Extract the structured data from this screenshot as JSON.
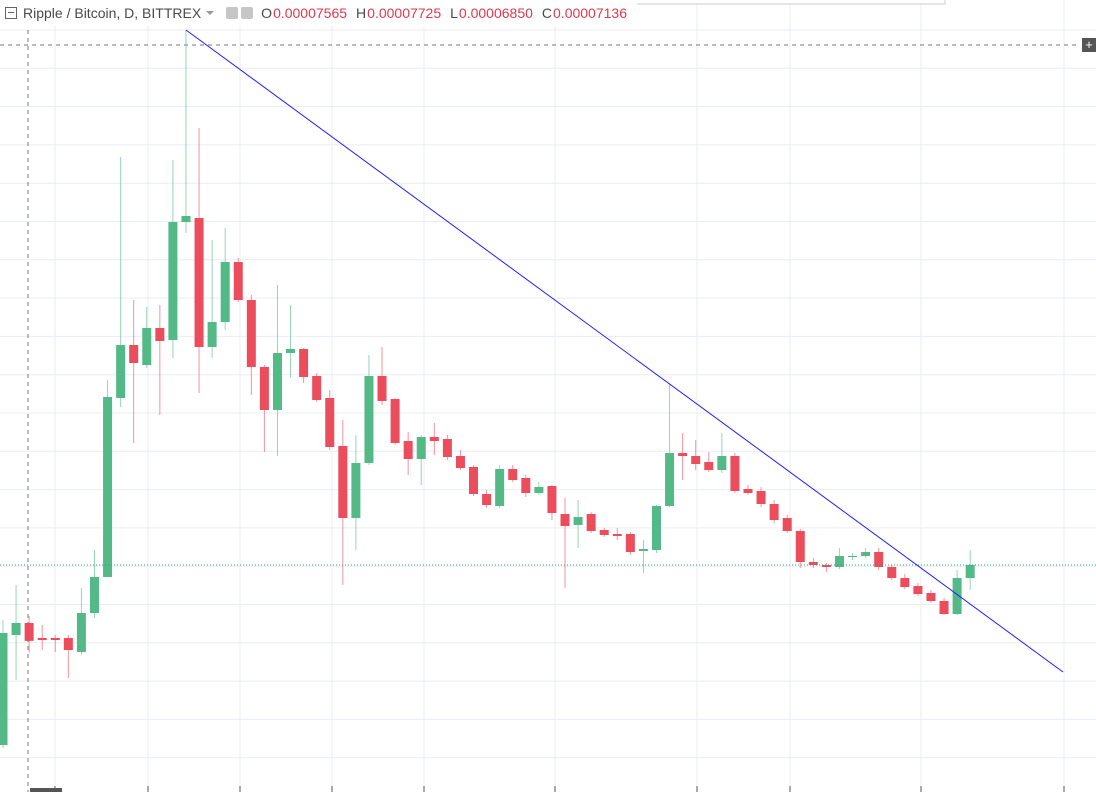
{
  "chart_data": {
    "type": "candlestick",
    "title": "Ripple / Bitcoin, D, BITTREX",
    "ohlc_legend": [
      {
        "label": "O",
        "value": "0.00007565"
      },
      {
        "label": "H",
        "value": "0.00007725"
      },
      {
        "label": "L",
        "value": "0.00006850"
      },
      {
        "label": "C",
        "value": "0.00007136"
      }
    ],
    "up_color": "#53b987",
    "down_color": "#eb4d5c",
    "ylim": [
      3.557e-05,
      0.00022517
    ],
    "open": [
      4.637e-05,
      7.277e-05,
      7.565e-05,
      7.205e-05,
      7.205e-05,
      7.205e-05,
      6.869e-05,
      7.805e-05,
      8.669e-05,
      0.00012965,
      0.00014237,
      0.00013757,
      0.00014645,
      0.00014357,
      0.00017189,
      0.00017285,
      0.00014189,
      0.00014789,
      0.00016229,
      0.00015317,
      0.00013709,
      0.00012677,
      0.00014045,
      0.00014141,
      0.00013493,
      0.00012965,
      0.00011813,
      0.00010085,
      0.00011405,
      0.00013493,
      0.00012941,
      0.00011933,
      0.00011501,
      0.00012029,
      0.00011981,
      0.00011573,
      0.00011309,
      0.00010661,
      0.00010373,
      0.00011261,
      0.00011045,
      0.00010685,
      0.00010853,
      0.00010181,
      9.917e-05,
      0.00010181,
      9.797e-05,
      9.701e-05,
      9.701e-05,
      9.293e-05,
      9.317e-05,
      0.00010373,
      0.00011645,
      0.00011573,
      0.00011429,
      0.00011237,
      0.00011573,
      0.00010781,
      0.00010733,
      0.00010421,
      0.00010085,
      9.773e-05,
      9.029e-05,
      8.957e-05,
      8.909e-05,
      9.149e-05,
      9.173e-05,
      9.269e-05,
      8.909e-05,
      8.645e-05,
      8.453e-05,
      8.285e-05,
      8.093e-05,
      7.781e-05,
      8.645e-05
    ],
    "high": [
      7.637e-05,
      8.477e-05,
      7.725e-05,
      7.517e-05,
      7.277e-05,
      7.277e-05,
      8.405e-05,
      9.317e-05,
      0.00013397,
      0.00018749,
      0.00015317,
      0.00015149,
      0.00015197,
      0.00018677,
      0.00021797,
      0.00019445,
      0.00016757,
      0.00017045,
      0.00016325,
      0.00015437,
      0.00013757,
      0.00015677,
      0.00015197,
      0.00014165,
      0.00013565,
      0.00013157,
      0.00012437,
      0.00012077,
      0.00013997,
      0.00014189,
      0.00012965,
      0.00012149,
      0.00012077,
      0.00012365,
      0.00012077,
      0.00011717,
      0.00011357,
      0.00010757,
      0.00011357,
      0.00011357,
      0.00011117,
      0.00010949,
      0.00010877,
      0.00010565,
      0.00010517,
      0.00010229,
      9.845e-05,
      9.845e-05,
      9.749e-05,
      9.557e-05,
      0.00010397,
      0.00013325,
      0.00012125,
      0.00011957,
      0.00011669,
      0.00012125,
      0.00011645,
      0.00010877,
      0.00010829,
      0.00010517,
      0.00010157,
      9.821e-05,
      9.125e-05,
      9.005e-05,
      9.365e-05,
      9.245e-05,
      9.365e-05,
      9.365e-05,
      8.957e-05,
      8.741e-05,
      8.525e-05,
      8.357e-05,
      8.165e-05,
      8.837e-05,
      9.317e-05
    ],
    "low": [
      4.565e-05,
      6.197e-05,
      6.85e-05,
      6.917e-05,
      6.869e-05,
      6.245e-05,
      6.797e-05,
      7.685e-05,
      8.669e-05,
      0.00012749,
      0.00011885,
      0.00013685,
      0.00012557,
      0.00013925,
      0.00016925,
      0.00013085,
      0.00013925,
      0.00014597,
      0.00015269,
      0.00013037,
      0.00011669,
      0.00011573,
      0.00013445,
      0.00013325,
      0.00012869,
      0.00011717,
      8.477e-05,
      9.317e-05,
      0.00011357,
      0.00012797,
      0.00011837,
      0.00011117,
      0.00010877,
      0.00011597,
      0.00011477,
      0.00011237,
      0.00010613,
      0.00010325,
      0.00010325,
      0.00010949,
      0.00010589,
      0.00010637,
      0.00010037,
      8.405e-05,
      9.365e-05,
      9.725e-05,
      9.629e-05,
      9.557e-05,
      9.197e-05,
      8.765e-05,
      9.245e-05,
      0.00010349,
      0.00010997,
      0.00011237,
      0.00011189,
      0.00011165,
      0.00010685,
      0.00010637,
      0.00010349,
      9.965e-05,
      9.725e-05,
      8.885e-05,
      8.885e-05,
      8.789e-05,
      8.861e-05,
      9.077e-05,
      9.125e-05,
      8.837e-05,
      8.597e-05,
      8.381e-05,
      8.213e-05,
      8.045e-05,
      7.757e-05,
      7.757e-05,
      8.357e-05
    ],
    "close": [
      7.325e-05,
      7.565e-05,
      7.136e-05,
      7.157e-05,
      7.157e-05,
      6.917e-05,
      7.805e-05,
      8.669e-05,
      0.00012989,
      0.00014237,
      0.00013805,
      0.00014645,
      0.00014333,
      0.00017189,
      0.00017333,
      0.00014189,
      0.00014789,
      0.00016229,
      0.00015317,
      0.00013709,
      0.00012677,
      0.00014045,
      0.00014141,
      0.00013469,
      0.00012917,
      0.00011789,
      0.00010085,
      0.00011405,
      0.00013493,
      0.00012893,
      0.00011885,
      0.00011501,
      0.00012029,
      0.00011933,
      0.00011549,
      0.00011285,
      0.00010661,
      0.00010397,
      0.00011261,
      0.00010997,
      0.00010685,
      0.00010829,
      0.00010205,
      9.893e-05,
      0.00010109,
      9.773e-05,
      9.677e-05,
      9.653e-05,
      9.269e-05,
      9.341e-05,
      0.00010373,
      0.00011645,
      0.00011573,
      0.00011381,
      0.00011237,
      0.00011573,
      0.00010733,
      0.00010685,
      0.00010421,
      0.00010037,
      9.773e-05,
      9.029e-05,
      8.957e-05,
      8.909e-05,
      9.173e-05,
      9.173e-05,
      9.269e-05,
      8.909e-05,
      8.645e-05,
      8.429e-05,
      8.261e-05,
      8.093e-05,
      7.781e-05,
      8.645e-05,
      8.957e-05
    ],
    "trendline": {
      "color": "#1f1fff",
      "x": [
        14,
        81.1
      ],
      "y": [
        0.00021797,
        6.389e-05
      ]
    },
    "last_price_color": "#26a67a"
  }
}
